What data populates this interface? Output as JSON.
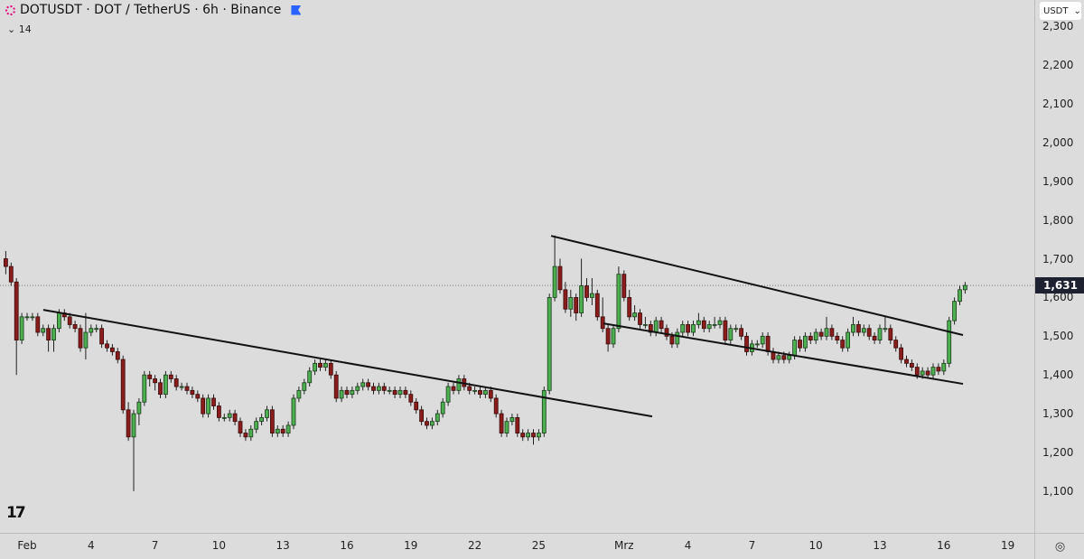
{
  "header": {
    "symbol_line": "DOTUSDT · DOT / TetherUS · 6h · Binance",
    "indicator_toggle": "⌄",
    "indicator_value": "14"
  },
  "price_axis": {
    "currency": "USDT",
    "currency_chevron": "⌄",
    "ticks": [
      "2,300",
      "2,200",
      "2,100",
      "2,000",
      "1,900",
      "1,800",
      "1,700",
      "1,600",
      "1,500",
      "1,400",
      "1,300",
      "1,200",
      "1,100"
    ],
    "last_price_label": "1,631"
  },
  "time_axis": {
    "ticks": [
      "Feb",
      "4",
      "7",
      "10",
      "13",
      "16",
      "19",
      "22",
      "25",
      "Mrz",
      "4",
      "7",
      "10",
      "13",
      "16",
      "19"
    ]
  },
  "corner_icon": "settings-eye-icon",
  "logo_text": "TV",
  "colors": {
    "up": "#4caf50",
    "down": "#8b1c1c",
    "background": "#dcdcdc",
    "last_price": "#1e2230",
    "trendline": "#111111"
  },
  "chart_data": {
    "type": "candlestick",
    "interval": "6h",
    "x_unit": "day (Feb 1 = 1, Mrz 1 = 29)",
    "x_ticks": [
      1,
      4,
      7,
      10,
      13,
      16,
      19,
      22,
      25,
      29,
      32,
      35,
      38,
      41,
      44,
      47
    ],
    "y_ticks": [
      2.3,
      2.2,
      2.1,
      2.0,
      1.9,
      1.8,
      1.7,
      1.6,
      1.5,
      1.4,
      1.3,
      1.2,
      1.1
    ],
    "ylim": [
      1.03,
      2.33
    ],
    "first_candle_day": 0,
    "last_price": 1.631,
    "ohlc": [
      [
        1.7,
        1.72,
        1.66,
        1.68
      ],
      [
        1.68,
        1.69,
        1.63,
        1.64
      ],
      [
        1.64,
        1.65,
        1.4,
        1.49
      ],
      [
        1.49,
        1.56,
        1.48,
        1.55
      ],
      [
        1.55,
        1.56,
        1.54,
        1.55
      ],
      [
        1.55,
        1.56,
        1.54,
        1.55
      ],
      [
        1.55,
        1.56,
        1.5,
        1.51
      ],
      [
        1.51,
        1.53,
        1.5,
        1.52
      ],
      [
        1.52,
        1.53,
        1.46,
        1.49
      ],
      [
        1.49,
        1.53,
        1.46,
        1.52
      ],
      [
        1.52,
        1.57,
        1.51,
        1.56
      ],
      [
        1.56,
        1.57,
        1.54,
        1.55
      ],
      [
        1.55,
        1.56,
        1.52,
        1.53
      ],
      [
        1.53,
        1.54,
        1.51,
        1.52
      ],
      [
        1.52,
        1.53,
        1.46,
        1.47
      ],
      [
        1.47,
        1.56,
        1.44,
        1.51
      ],
      [
        1.51,
        1.53,
        1.5,
        1.52
      ],
      [
        1.52,
        1.53,
        1.51,
        1.52
      ],
      [
        1.52,
        1.53,
        1.47,
        1.48
      ],
      [
        1.48,
        1.49,
        1.46,
        1.47
      ],
      [
        1.47,
        1.48,
        1.45,
        1.46
      ],
      [
        1.46,
        1.47,
        1.43,
        1.44
      ],
      [
        1.44,
        1.45,
        1.3,
        1.31
      ],
      [
        1.31,
        1.33,
        1.23,
        1.24
      ],
      [
        1.24,
        1.31,
        1.1,
        1.3
      ],
      [
        1.3,
        1.34,
        1.27,
        1.33
      ],
      [
        1.33,
        1.41,
        1.32,
        1.4
      ],
      [
        1.4,
        1.41,
        1.37,
        1.39
      ],
      [
        1.39,
        1.4,
        1.36,
        1.38
      ],
      [
        1.38,
        1.39,
        1.34,
        1.35
      ],
      [
        1.35,
        1.41,
        1.34,
        1.4
      ],
      [
        1.4,
        1.41,
        1.38,
        1.39
      ],
      [
        1.39,
        1.4,
        1.36,
        1.37
      ],
      [
        1.37,
        1.38,
        1.36,
        1.37
      ],
      [
        1.37,
        1.38,
        1.35,
        1.36
      ],
      [
        1.36,
        1.37,
        1.34,
        1.35
      ],
      [
        1.35,
        1.36,
        1.33,
        1.34
      ],
      [
        1.34,
        1.35,
        1.29,
        1.3
      ],
      [
        1.3,
        1.35,
        1.29,
        1.34
      ],
      [
        1.34,
        1.35,
        1.31,
        1.32
      ],
      [
        1.32,
        1.33,
        1.28,
        1.29
      ],
      [
        1.29,
        1.3,
        1.28,
        1.29
      ],
      [
        1.29,
        1.31,
        1.28,
        1.3
      ],
      [
        1.3,
        1.31,
        1.27,
        1.28
      ],
      [
        1.28,
        1.29,
        1.24,
        1.25
      ],
      [
        1.25,
        1.26,
        1.23,
        1.24
      ],
      [
        1.24,
        1.27,
        1.23,
        1.26
      ],
      [
        1.26,
        1.29,
        1.25,
        1.28
      ],
      [
        1.28,
        1.3,
        1.27,
        1.29
      ],
      [
        1.29,
        1.32,
        1.28,
        1.31
      ],
      [
        1.31,
        1.32,
        1.24,
        1.25
      ],
      [
        1.25,
        1.27,
        1.24,
        1.26
      ],
      [
        1.26,
        1.27,
        1.24,
        1.25
      ],
      [
        1.25,
        1.28,
        1.24,
        1.27
      ],
      [
        1.27,
        1.35,
        1.26,
        1.34
      ],
      [
        1.34,
        1.37,
        1.33,
        1.36
      ],
      [
        1.36,
        1.39,
        1.35,
        1.38
      ],
      [
        1.38,
        1.42,
        1.37,
        1.41
      ],
      [
        1.41,
        1.44,
        1.4,
        1.43
      ],
      [
        1.43,
        1.44,
        1.41,
        1.42
      ],
      [
        1.42,
        1.44,
        1.41,
        1.43
      ],
      [
        1.43,
        1.44,
        1.39,
        1.4
      ],
      [
        1.4,
        1.41,
        1.33,
        1.34
      ],
      [
        1.34,
        1.37,
        1.33,
        1.36
      ],
      [
        1.36,
        1.37,
        1.34,
        1.35
      ],
      [
        1.35,
        1.37,
        1.34,
        1.36
      ],
      [
        1.36,
        1.38,
        1.35,
        1.37
      ],
      [
        1.37,
        1.39,
        1.36,
        1.38
      ],
      [
        1.38,
        1.39,
        1.36,
        1.37
      ],
      [
        1.37,
        1.38,
        1.35,
        1.36
      ],
      [
        1.36,
        1.38,
        1.35,
        1.37
      ],
      [
        1.37,
        1.38,
        1.35,
        1.36
      ],
      [
        1.36,
        1.37,
        1.35,
        1.36
      ],
      [
        1.36,
        1.37,
        1.34,
        1.35
      ],
      [
        1.35,
        1.37,
        1.34,
        1.36
      ],
      [
        1.36,
        1.37,
        1.34,
        1.35
      ],
      [
        1.35,
        1.36,
        1.32,
        1.33
      ],
      [
        1.33,
        1.34,
        1.3,
        1.31
      ],
      [
        1.31,
        1.32,
        1.27,
        1.28
      ],
      [
        1.28,
        1.29,
        1.26,
        1.27
      ],
      [
        1.27,
        1.29,
        1.26,
        1.28
      ],
      [
        1.28,
        1.31,
        1.27,
        1.3
      ],
      [
        1.3,
        1.34,
        1.29,
        1.33
      ],
      [
        1.33,
        1.38,
        1.32,
        1.37
      ],
      [
        1.37,
        1.38,
        1.35,
        1.36
      ],
      [
        1.36,
        1.4,
        1.35,
        1.39
      ],
      [
        1.39,
        1.4,
        1.36,
        1.37
      ],
      [
        1.37,
        1.38,
        1.35,
        1.36
      ],
      [
        1.36,
        1.37,
        1.35,
        1.36
      ],
      [
        1.36,
        1.37,
        1.34,
        1.35
      ],
      [
        1.35,
        1.37,
        1.34,
        1.36
      ],
      [
        1.36,
        1.37,
        1.33,
        1.34
      ],
      [
        1.34,
        1.35,
        1.29,
        1.3
      ],
      [
        1.3,
        1.31,
        1.24,
        1.25
      ],
      [
        1.25,
        1.29,
        1.24,
        1.28
      ],
      [
        1.28,
        1.3,
        1.27,
        1.29
      ],
      [
        1.29,
        1.3,
        1.24,
        1.25
      ],
      [
        1.25,
        1.26,
        1.23,
        1.24
      ],
      [
        1.24,
        1.26,
        1.23,
        1.25
      ],
      [
        1.25,
        1.26,
        1.22,
        1.24
      ],
      [
        1.24,
        1.26,
        1.23,
        1.25
      ],
      [
        1.25,
        1.37,
        1.24,
        1.36
      ],
      [
        1.36,
        1.61,
        1.35,
        1.6
      ],
      [
        1.6,
        1.76,
        1.59,
        1.68
      ],
      [
        1.68,
        1.7,
        1.61,
        1.62
      ],
      [
        1.62,
        1.64,
        1.56,
        1.57
      ],
      [
        1.57,
        1.62,
        1.55,
        1.6
      ],
      [
        1.6,
        1.61,
        1.54,
        1.56
      ],
      [
        1.56,
        1.7,
        1.55,
        1.63
      ],
      [
        1.63,
        1.65,
        1.59,
        1.6
      ],
      [
        1.6,
        1.65,
        1.58,
        1.61
      ],
      [
        1.61,
        1.62,
        1.54,
        1.55
      ],
      [
        1.55,
        1.6,
        1.51,
        1.52
      ],
      [
        1.52,
        1.53,
        1.46,
        1.48
      ],
      [
        1.48,
        1.53,
        1.47,
        1.52
      ],
      [
        1.52,
        1.68,
        1.51,
        1.66
      ],
      [
        1.66,
        1.67,
        1.59,
        1.6
      ],
      [
        1.6,
        1.62,
        1.54,
        1.55
      ],
      [
        1.55,
        1.58,
        1.54,
        1.56
      ],
      [
        1.56,
        1.57,
        1.52,
        1.53
      ],
      [
        1.53,
        1.55,
        1.52,
        1.53
      ],
      [
        1.53,
        1.54,
        1.5,
        1.51
      ],
      [
        1.51,
        1.55,
        1.5,
        1.54
      ],
      [
        1.54,
        1.55,
        1.51,
        1.52
      ],
      [
        1.52,
        1.53,
        1.49,
        1.5
      ],
      [
        1.5,
        1.51,
        1.47,
        1.48
      ],
      [
        1.48,
        1.52,
        1.47,
        1.51
      ],
      [
        1.51,
        1.54,
        1.5,
        1.53
      ],
      [
        1.53,
        1.54,
        1.5,
        1.51
      ],
      [
        1.51,
        1.54,
        1.5,
        1.53
      ],
      [
        1.53,
        1.56,
        1.52,
        1.54
      ],
      [
        1.54,
        1.55,
        1.51,
        1.52
      ],
      [
        1.52,
        1.54,
        1.51,
        1.53
      ],
      [
        1.53,
        1.55,
        1.52,
        1.53
      ],
      [
        1.53,
        1.55,
        1.52,
        1.54
      ],
      [
        1.54,
        1.55,
        1.48,
        1.49
      ],
      [
        1.49,
        1.53,
        1.48,
        1.52
      ],
      [
        1.52,
        1.53,
        1.51,
        1.52
      ],
      [
        1.52,
        1.53,
        1.49,
        1.5
      ],
      [
        1.5,
        1.51,
        1.45,
        1.46
      ],
      [
        1.46,
        1.49,
        1.45,
        1.48
      ],
      [
        1.48,
        1.49,
        1.47,
        1.48
      ],
      [
        1.48,
        1.51,
        1.47,
        1.5
      ],
      [
        1.5,
        1.51,
        1.45,
        1.46
      ],
      [
        1.46,
        1.47,
        1.43,
        1.44
      ],
      [
        1.44,
        1.46,
        1.43,
        1.45
      ],
      [
        1.45,
        1.46,
        1.43,
        1.44
      ],
      [
        1.44,
        1.46,
        1.43,
        1.45
      ],
      [
        1.45,
        1.5,
        1.44,
        1.49
      ],
      [
        1.49,
        1.5,
        1.46,
        1.47
      ],
      [
        1.47,
        1.51,
        1.46,
        1.5
      ],
      [
        1.5,
        1.51,
        1.48,
        1.49
      ],
      [
        1.49,
        1.52,
        1.48,
        1.51
      ],
      [
        1.51,
        1.52,
        1.49,
        1.5
      ],
      [
        1.5,
        1.55,
        1.49,
        1.52
      ],
      [
        1.52,
        1.53,
        1.49,
        1.5
      ],
      [
        1.5,
        1.51,
        1.48,
        1.49
      ],
      [
        1.49,
        1.5,
        1.46,
        1.47
      ],
      [
        1.47,
        1.52,
        1.46,
        1.51
      ],
      [
        1.51,
        1.55,
        1.5,
        1.53
      ],
      [
        1.53,
        1.54,
        1.5,
        1.51
      ],
      [
        1.51,
        1.53,
        1.5,
        1.52
      ],
      [
        1.52,
        1.53,
        1.49,
        1.5
      ],
      [
        1.5,
        1.51,
        1.48,
        1.49
      ],
      [
        1.49,
        1.53,
        1.48,
        1.52
      ],
      [
        1.52,
        1.55,
        1.51,
        1.52
      ],
      [
        1.52,
        1.53,
        1.48,
        1.49
      ],
      [
        1.49,
        1.5,
        1.46,
        1.47
      ],
      [
        1.47,
        1.48,
        1.43,
        1.44
      ],
      [
        1.44,
        1.45,
        1.42,
        1.43
      ],
      [
        1.43,
        1.44,
        1.41,
        1.42
      ],
      [
        1.42,
        1.43,
        1.39,
        1.4
      ],
      [
        1.4,
        1.42,
        1.39,
        1.41
      ],
      [
        1.41,
        1.42,
        1.39,
        1.4
      ],
      [
        1.4,
        1.43,
        1.39,
        1.42
      ],
      [
        1.42,
        1.43,
        1.4,
        1.41
      ],
      [
        1.41,
        1.44,
        1.4,
        1.43
      ],
      [
        1.43,
        1.55,
        1.42,
        1.54
      ],
      [
        1.54,
        1.6,
        1.53,
        1.59
      ],
      [
        1.59,
        1.63,
        1.58,
        1.62
      ],
      [
        1.62,
        1.64,
        1.61,
        1.631
      ]
    ],
    "trendlines": [
      {
        "from": [
          1.76,
          1.568
        ],
        "to": [
          30.32,
          1.293
        ]
      },
      {
        "from": [
          25.58,
          1.759
        ],
        "to": [
          44.9,
          1.503
        ]
      },
      {
        "from": [
          28.03,
          1.533
        ],
        "to": [
          44.9,
          1.377
        ]
      }
    ]
  }
}
